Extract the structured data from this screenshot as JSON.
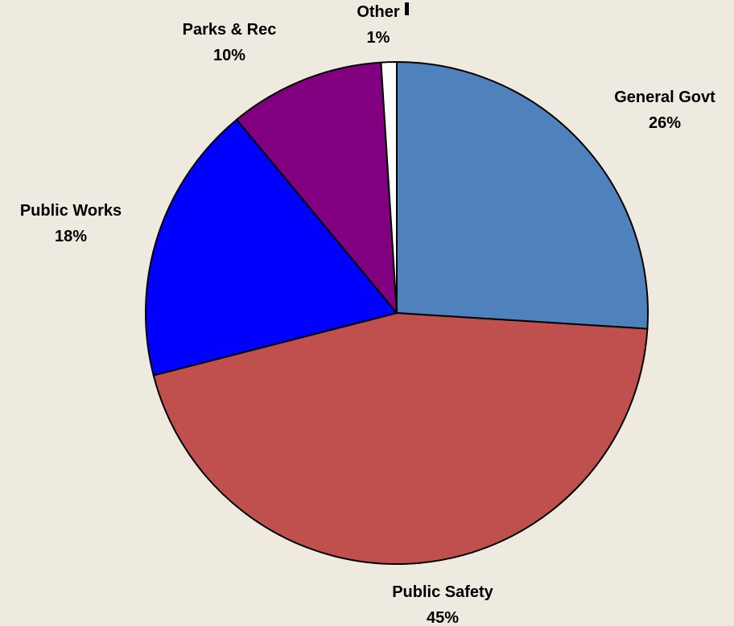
{
  "chart_data": {
    "type": "pie",
    "title": "",
    "slices": [
      {
        "name": "General Govt",
        "value": 26,
        "label": "26%",
        "color": "#4F81BD"
      },
      {
        "name": "Public Safety",
        "value": 45,
        "label": "45%",
        "color": "#C0504D"
      },
      {
        "name": "Public Works",
        "value": 18,
        "label": "18%",
        "color": "#0000FF"
      },
      {
        "name": "Parks & Rec",
        "value": 10,
        "label": "10%",
        "color": "#800080"
      },
      {
        "name": "Other",
        "value": 1,
        "label": "1%",
        "color": "#FFFFFF"
      }
    ],
    "start_angle": "12 o'clock",
    "direction": "clockwise",
    "background": "#EEEAE0"
  }
}
